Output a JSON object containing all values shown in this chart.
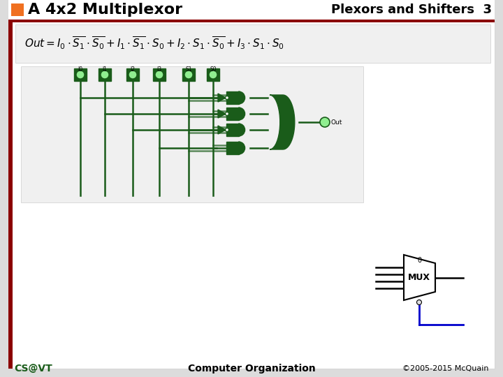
{
  "title_left": "A 4x2 Multiplexor",
  "title_right": "Plexors and Shifters  3",
  "footer_left": "CS@VT",
  "footer_center": "Computer Organization",
  "footer_right": "©2005-2015 McQuain",
  "orange_box_color": "#f07020",
  "dark_red_color": "#8b0000",
  "circuit_color": "#1a5c1a",
  "circuit_lw": 1.8,
  "mux_color": "#000000",
  "blue_color": "#0000cc"
}
